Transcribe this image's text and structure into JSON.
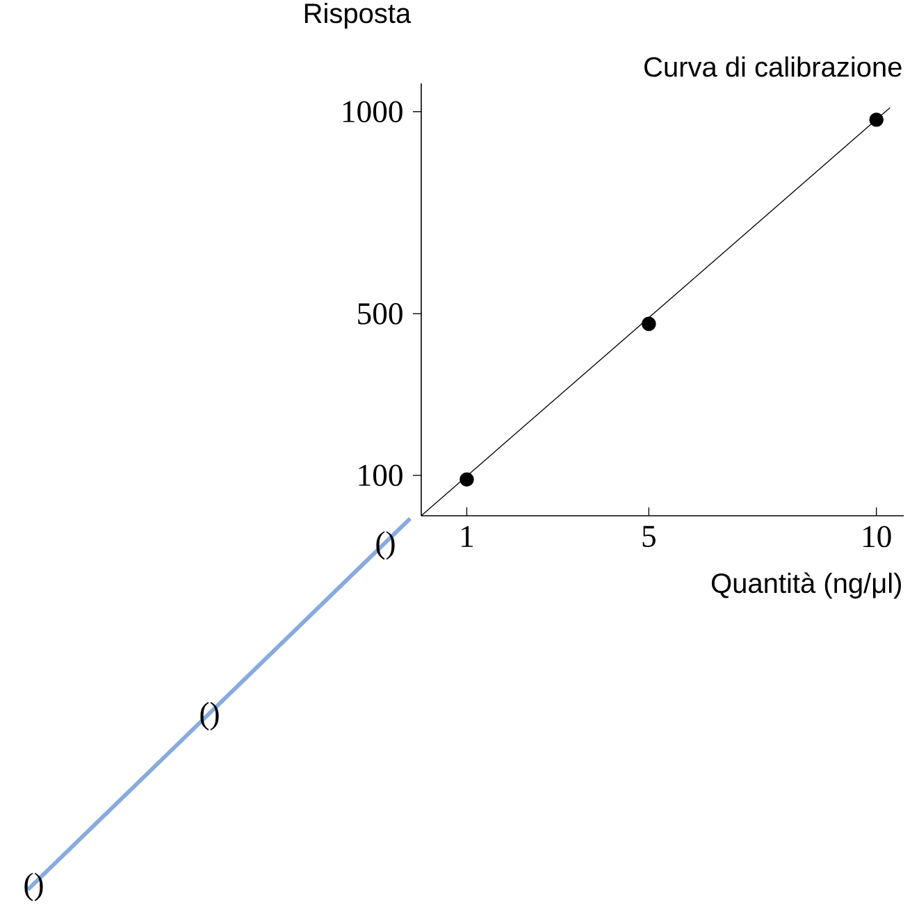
{
  "chart_data": {
    "type": "scatter",
    "title": "Curva di calibrazione",
    "xlabel": "Quantità (ng/μl)",
    "ylabel": "Risposta",
    "xlim": [
      0,
      10.6
    ],
    "ylim": [
      0,
      1070
    ],
    "xticks": [
      1,
      5,
      10
    ],
    "yticks": [
      100,
      500,
      1000
    ],
    "series": [
      {
        "type": "line",
        "color": "#000000",
        "x": [
          0,
          10.3
        ],
        "values": [
          0,
          1010
        ],
        "marker": "none"
      },
      {
        "color": "#000000",
        "x": [
          1,
          5,
          10
        ],
        "values": [
          90,
          475,
          980
        ],
        "marker": "circle"
      }
    ],
    "annotations": [
      "()",
      "()",
      "()"
    ]
  }
}
